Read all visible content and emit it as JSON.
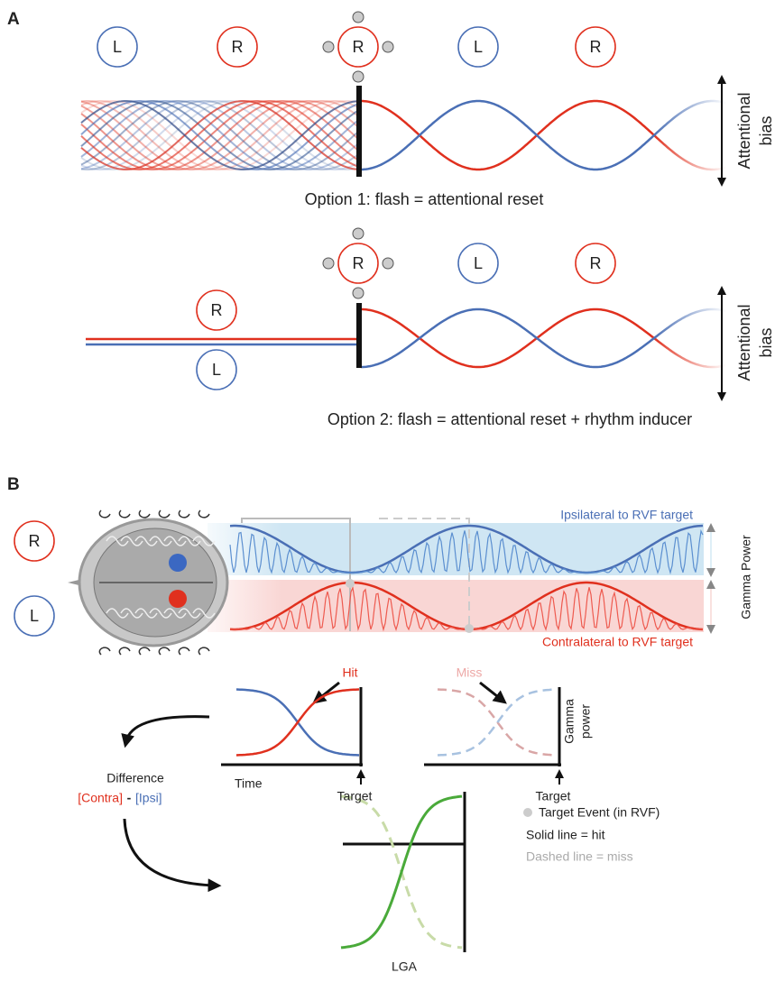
{
  "panel_a": {
    "label": "A",
    "option1": {
      "circles": [
        "L",
        "R",
        "R",
        "L",
        "R"
      ],
      "axis_label": [
        "Attentional",
        "bias"
      ],
      "caption": "Option 1: flash = attentional reset"
    },
    "option2": {
      "circles": [
        "R",
        "L",
        "R"
      ],
      "side_labels": [
        "R",
        "L"
      ],
      "axis_label": [
        "Attentional",
        "bias"
      ],
      "caption": "Option 2: flash = attentional reset + rhythm inducer"
    }
  },
  "panel_b": {
    "label": "B",
    "hemifields": [
      "R",
      "L"
    ],
    "ipsi_label": "Ipsilateral to RVF target",
    "contra_label": "Contralateral to RVF target",
    "gamma_power": "Gamma Power",
    "hit": "Hit",
    "miss": "Miss",
    "plot_y_label": [
      "Gamma",
      "power"
    ],
    "time": "Time",
    "targets": [
      "Target",
      "Target"
    ],
    "difference": "Difference",
    "contra": "[Contra]",
    "minus": "-",
    "ipsi": "[Ipsi]",
    "legend": {
      "event": "Target Event (in RVF)",
      "solid": "Solid line = hit",
      "dashed": "Dashed line = miss"
    },
    "lga": "LGA"
  }
}
